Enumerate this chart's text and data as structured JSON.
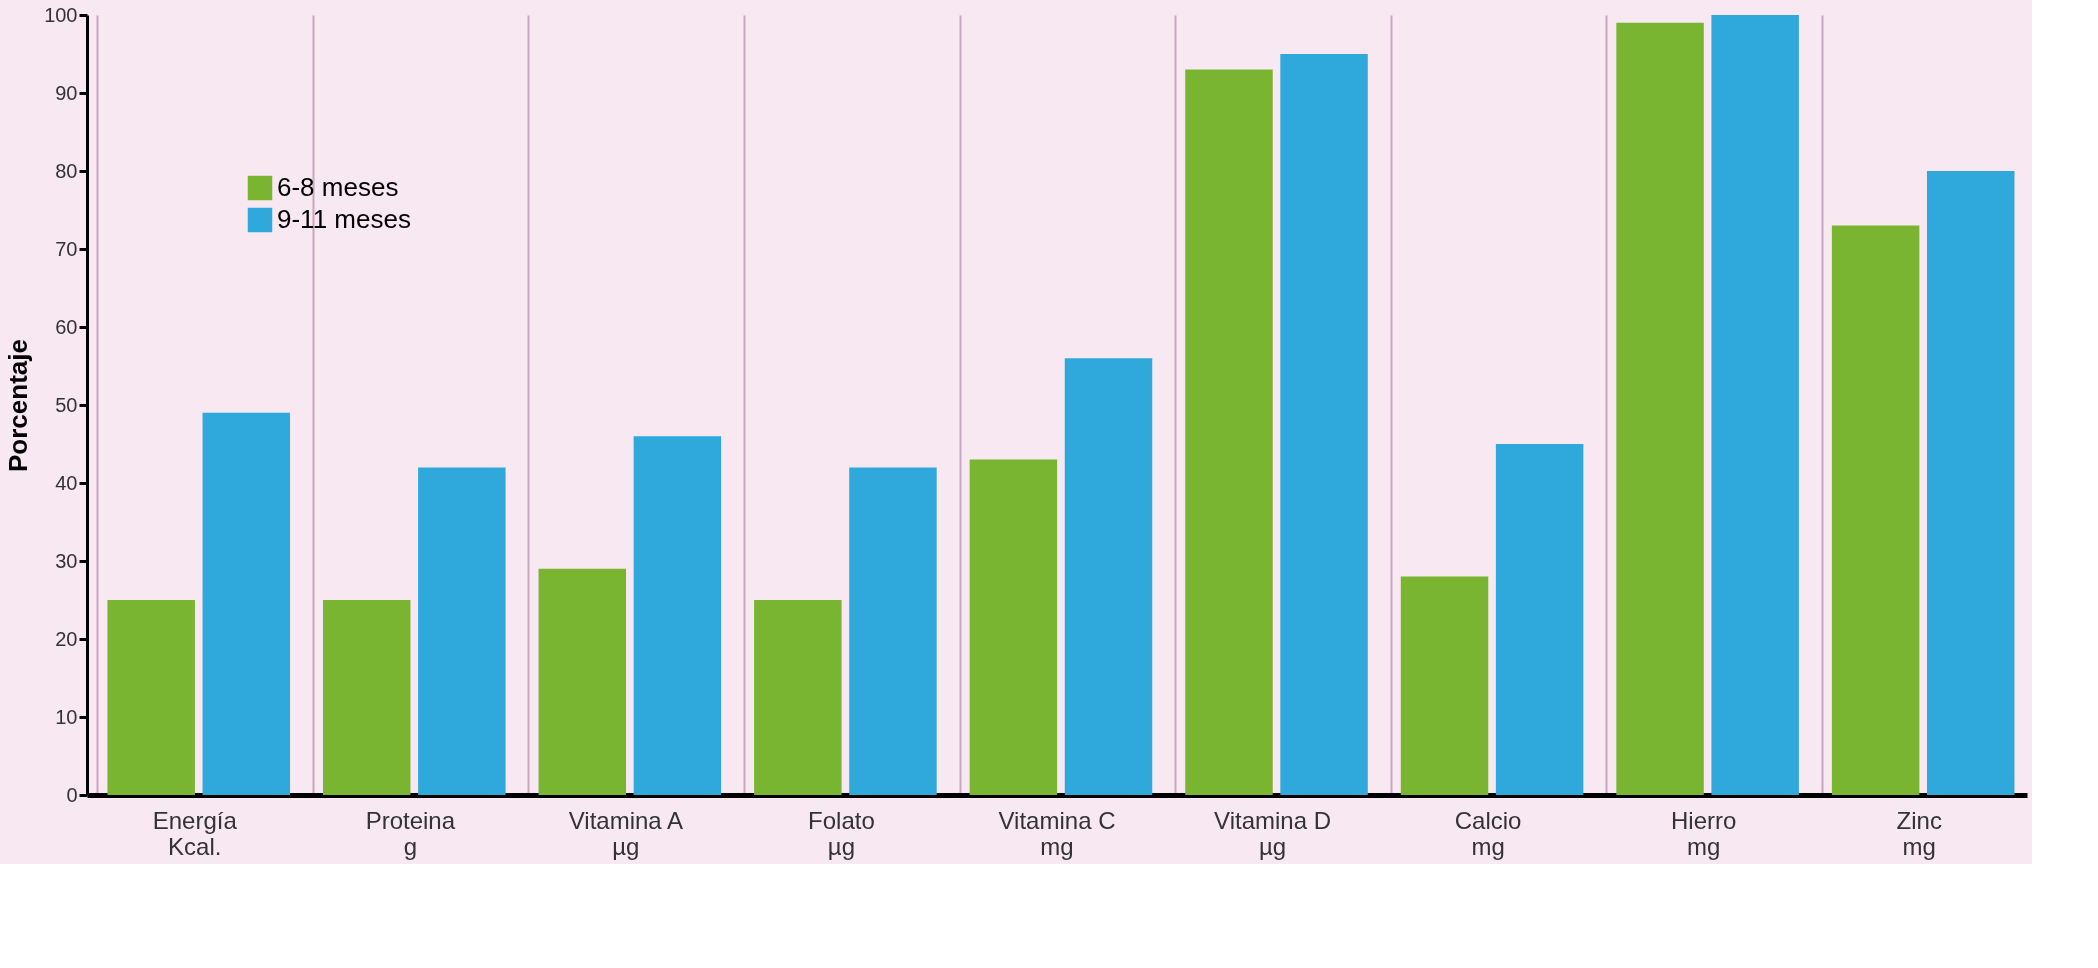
{
  "chart_data": {
    "type": "bar",
    "ylabel": "Porcentaje",
    "categories": [
      "Energía\nKcal.",
      "Proteina\ng",
      "Vitamina A\nµg",
      "Folato\nµg",
      "Vitamina C\nmg",
      "Vitamina D\nµg",
      "Calcio\nmg",
      "Hierro\nmg",
      "Zinc\nmg"
    ],
    "series": [
      {
        "name": "6-8 meses",
        "color": "#7ab532",
        "values": [
          25,
          25,
          29,
          25,
          43,
          93,
          28,
          99,
          73
        ]
      },
      {
        "name": "9-11 meses",
        "color": "#2fa8dc",
        "values": [
          49,
          42,
          46,
          42,
          56,
          95,
          45,
          100,
          80
        ]
      }
    ],
    "ylim": [
      0,
      100
    ],
    "yticks": [
      0,
      10,
      20,
      30,
      40,
      50,
      60,
      70,
      80,
      90,
      100
    ],
    "grid": "x",
    "legend": "top left"
  }
}
